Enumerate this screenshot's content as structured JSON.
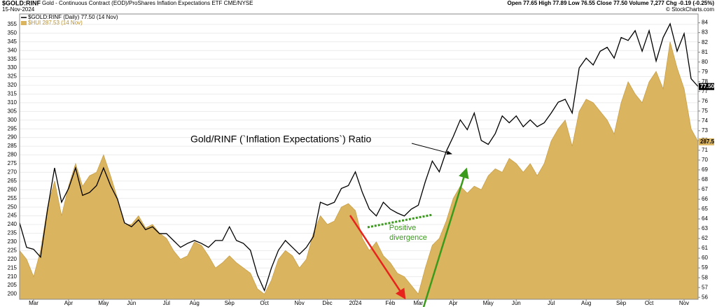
{
  "chart_data": {
    "type": "combo",
    "title": "$GOLD:RINF",
    "subtitle": "Gold - Continuous Contract (EOD)/ProShares Inflation Expectations ETF CME/NYSE",
    "date": "15-Nov-2024",
    "quote": "Open 77.65  High 77.89  Low 76.55  Close 77.50  Volume 7,277  Chg -0.19 (-0.25%)",
    "credit": "© StockCharts.com",
    "annotations": [
      "Gold/RINF (`Inflation Expectations`) Ratio",
      "Positive",
      "divergence"
    ],
    "categories": [
      null,
      null,
      "Mar",
      null,
      null,
      null,
      null,
      "Apr",
      null,
      null,
      null,
      null,
      "May",
      null,
      null,
      null,
      "Jun",
      null,
      null,
      null,
      null,
      "Jul",
      null,
      null,
      null,
      "Aug",
      null,
      null,
      null,
      null,
      "Sep",
      null,
      null,
      null,
      null,
      "Oct",
      null,
      null,
      null,
      null,
      "Nov",
      null,
      null,
      null,
      "Dec",
      null,
      null,
      null,
      "2024",
      null,
      null,
      null,
      null,
      "Feb",
      null,
      null,
      null,
      "Mar",
      null,
      null,
      null,
      null,
      "Apr",
      null,
      null,
      null,
      null,
      "May",
      null,
      null,
      null,
      "Jun",
      null,
      null,
      null,
      null,
      "Jul",
      null,
      null,
      null,
      null,
      "Aug",
      null,
      null,
      null,
      null,
      "Sep",
      null,
      null,
      null,
      "Oct",
      null,
      null,
      null,
      null,
      "Nov",
      null,
      null
    ],
    "series": [
      {
        "name": "$HUI 287.53 (14 Nov)",
        "style": "area",
        "color": "#dbb45f",
        "last_label": "287.5",
        "values": [
          225,
          220,
          210,
          225,
          250,
          265,
          245,
          262,
          275,
          262,
          268,
          270,
          280,
          268,
          255,
          240,
          240,
          245,
          238,
          240,
          235,
          232,
          225,
          220,
          222,
          230,
          228,
          222,
          215,
          218,
          222,
          218,
          215,
          212,
          203,
          200,
          208,
          220,
          225,
          222,
          215,
          220,
          235,
          245,
          240,
          242,
          250,
          252,
          248,
          232,
          225,
          230,
          222,
          218,
          212,
          210,
          205,
          200,
          215,
          228,
          232,
          242,
          255,
          262,
          258,
          262,
          260,
          268,
          272,
          270,
          278,
          275,
          270,
          275,
          268,
          275,
          288,
          295,
          300,
          285,
          305,
          312,
          310,
          305,
          300,
          292,
          310,
          322,
          315,
          310,
          322,
          328,
          318,
          345,
          330,
          318,
          295,
          287.53
        ]
      },
      {
        "name": "$GOLD:RINF (Daily) 77.50 (14 Nov)",
        "style": "line",
        "color": "#000000",
        "axis": "y2",
        "last_label": "77.50",
        "values": [
          63.6,
          61.1,
          60.9,
          60.1,
          65,
          69.2,
          65.7,
          67.1,
          69.2,
          66.4,
          66.7,
          67.4,
          69.2,
          67.4,
          66,
          63.6,
          63.2,
          63.9,
          62.9,
          63.2,
          62.5,
          62.5,
          61.8,
          61.1,
          61.5,
          61.8,
          61.5,
          61.1,
          61.8,
          61.8,
          63.2,
          61.8,
          61.5,
          60.8,
          58.3,
          56.7,
          59,
          60.8,
          61.8,
          61.1,
          60.4,
          61.1,
          62.2,
          65.7,
          65.4,
          65.7,
          67.1,
          67.4,
          68.8,
          66.7,
          65,
          64.3,
          65.7,
          65,
          64.6,
          64.3,
          65,
          65.4,
          67.8,
          69.9,
          68.8,
          70.9,
          72.4,
          74.1,
          73.1,
          74.8,
          72,
          71.6,
          72.7,
          74.5,
          73.8,
          74.5,
          73.4,
          74.1,
          73.4,
          73.8,
          74.8,
          75.9,
          76.2,
          74.8,
          79.4,
          80.4,
          79.7,
          81.1,
          81.5,
          80.4,
          82.5,
          82.2,
          83.2,
          81.1,
          83.2,
          80.1,
          82.5,
          83.9,
          81.1,
          82.9,
          78.3,
          77.5
        ]
      }
    ],
    "ylim": [
      197,
      361
    ],
    "yticks": [
      200,
      205,
      210,
      215,
      220,
      225,
      230,
      235,
      240,
      245,
      250,
      255,
      260,
      265,
      270,
      275,
      280,
      285,
      290,
      295,
      300,
      305,
      310,
      315,
      320,
      325,
      330,
      335,
      340,
      345,
      350,
      355
    ],
    "y2lim": [
      55.8,
      84.9
    ],
    "y2ticks": [
      56,
      57,
      58,
      59,
      60,
      61,
      62,
      63,
      64,
      65,
      66,
      67,
      68,
      69,
      70,
      71,
      72,
      73,
      74,
      75,
      76,
      77,
      78,
      79,
      80,
      81,
      82,
      83,
      84
    ],
    "grid": true
  }
}
